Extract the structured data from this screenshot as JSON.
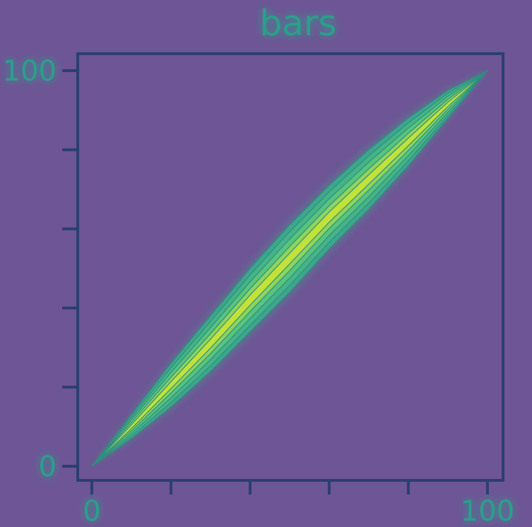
{
  "chart_data": {
    "type": "heatmap",
    "title": "bars",
    "xlabel": "",
    "ylabel": "",
    "xlim": [
      0,
      100
    ],
    "ylim": [
      0,
      100
    ],
    "x_ticks": [
      0,
      20,
      40,
      60,
      80,
      100
    ],
    "y_ticks": [
      0,
      20,
      40,
      60,
      80,
      100
    ],
    "x_tick_labels": [
      "0",
      "",
      "",
      "",
      "",
      "100"
    ],
    "y_tick_labels": [
      "0",
      "",
      "",
      "",
      "",
      "100"
    ],
    "grid": false,
    "legend": "none",
    "density": {
      "from": [
        0,
        0
      ],
      "to": [
        100,
        100
      ],
      "upper_boundary": [
        [
          0,
          0
        ],
        [
          10,
          13
        ],
        [
          20,
          26
        ],
        [
          30,
          38
        ],
        [
          40,
          50
        ],
        [
          50,
          61
        ],
        [
          60,
          71
        ],
        [
          70,
          80
        ],
        [
          80,
          88
        ],
        [
          90,
          95
        ],
        [
          100,
          100
        ]
      ],
      "lower_boundary": [
        [
          0,
          0
        ],
        [
          10,
          7
        ],
        [
          20,
          15
        ],
        [
          30,
          24
        ],
        [
          40,
          34
        ],
        [
          50,
          44
        ],
        [
          60,
          55
        ],
        [
          70,
          65
        ],
        [
          80,
          76
        ],
        [
          90,
          88
        ],
        [
          100,
          100
        ]
      ]
    },
    "colors": {
      "background": "#6e5595",
      "frame": "#2c3f6e",
      "low": "#3aaa8c",
      "mid": "#58c47d",
      "high": "#c2e23a",
      "text": "#2aa08a"
    }
  }
}
